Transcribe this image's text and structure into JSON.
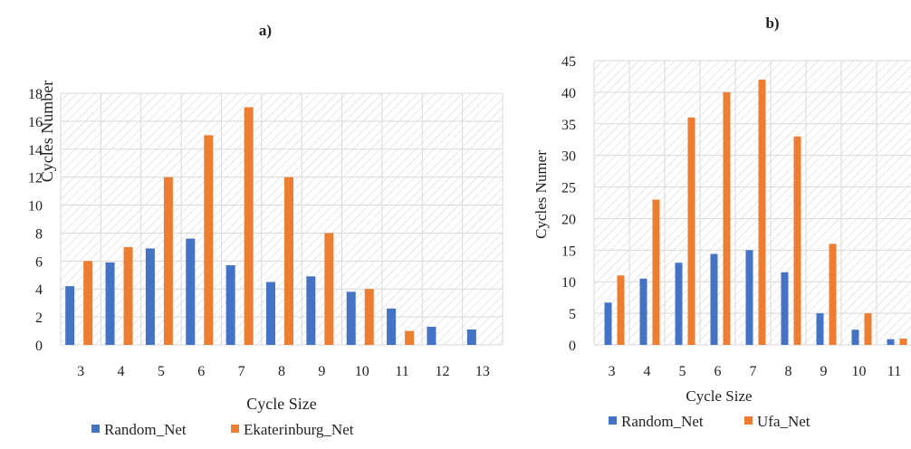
{
  "chart_data": [
    {
      "type": "bar",
      "title": "a)",
      "xlabel": "Cycle Size",
      "ylabel": "Cycles Number",
      "categories": [
        "3",
        "4",
        "5",
        "6",
        "7",
        "8",
        "9",
        "10",
        "11",
        "12",
        "13"
      ],
      "ylim": [
        0,
        18
      ],
      "yticks": [
        0,
        2,
        4,
        6,
        8,
        10,
        12,
        14,
        16,
        18
      ],
      "grid": true,
      "legend_position": "bottom",
      "series": [
        {
          "name": "Random_Net",
          "color": "#4472C4",
          "values": [
            4.2,
            5.9,
            6.9,
            7.6,
            5.7,
            4.5,
            4.9,
            3.8,
            2.6,
            1.3,
            1.1
          ]
        },
        {
          "name": "Ekaterinburg_Net",
          "color": "#ED7D31",
          "values": [
            6,
            7,
            12,
            15,
            17,
            12,
            8,
            4,
            1,
            0,
            0
          ]
        }
      ]
    },
    {
      "type": "bar",
      "title": "b)",
      "xlabel": "Cycle Size",
      "ylabel": "Cycles Numer",
      "categories": [
        "3",
        "4",
        "5",
        "6",
        "7",
        "8",
        "9",
        "10",
        "11"
      ],
      "ylim": [
        0,
        45
      ],
      "yticks": [
        0,
        5,
        10,
        15,
        20,
        25,
        30,
        35,
        40,
        45
      ],
      "grid": true,
      "legend_position": "bottom",
      "series": [
        {
          "name": "Random_Net",
          "color": "#4472C4",
          "values": [
            6.7,
            10.5,
            13,
            14.4,
            15,
            11.5,
            5,
            2.4,
            0.9
          ]
        },
        {
          "name": "Ufa_Net",
          "color": "#ED7D31",
          "values": [
            11,
            23,
            36,
            40,
            42,
            33,
            16,
            5,
            1
          ]
        }
      ]
    }
  ]
}
